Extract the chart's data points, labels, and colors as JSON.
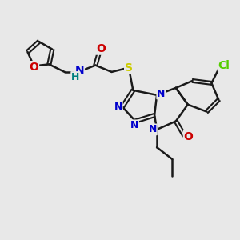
{
  "bg_color": "#e8e8e8",
  "bond_color": "#1a1a1a",
  "bw": 1.8,
  "atom_colors": {
    "O": "#cc0000",
    "N": "#0000cc",
    "H": "#008080",
    "S": "#cccc00",
    "Cl": "#55cc00",
    "C": "#1a1a1a"
  },
  "fs": 10,
  "fs_small": 9
}
